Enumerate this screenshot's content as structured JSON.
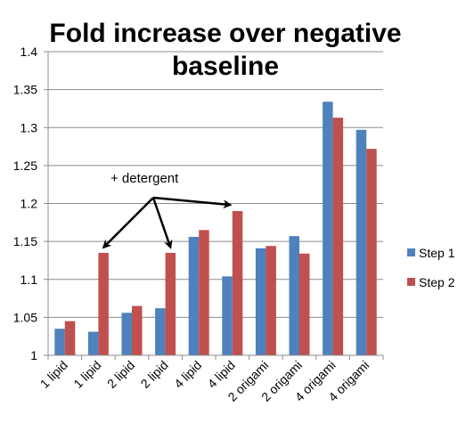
{
  "chart_data": {
    "type": "bar",
    "title": "Fold increase over negative baseline",
    "title_lines": [
      "Fold increase over negative",
      "baseline"
    ],
    "categories": [
      "1 lipid",
      "1 lipid",
      "2 lipid",
      "2 lipid",
      "4 lipid",
      "4 lipid",
      "2 origami",
      "2 origami",
      "4 origami",
      "4 origami"
    ],
    "series": [
      {
        "name": "Step 1",
        "color": "#4f81bd",
        "values": [
          1.035,
          1.031,
          1.056,
          1.062,
          1.156,
          1.104,
          1.141,
          1.157,
          1.334,
          1.297
        ]
      },
      {
        "name": "Step 2",
        "color": "#c0504d",
        "values": [
          1.045,
          1.135,
          1.065,
          1.135,
          1.165,
          1.19,
          1.144,
          1.134,
          1.313,
          1.272
        ]
      }
    ],
    "ylim": [
      1,
      1.4
    ],
    "yticks": [
      "1",
      "1.05",
      "1.1",
      "1.15",
      "1.2",
      "1.25",
      "1.3",
      "1.35",
      "1.4"
    ],
    "ytick_values": [
      1,
      1.05,
      1.1,
      1.15,
      1.2,
      1.25,
      1.3,
      1.35,
      1.4
    ],
    "xlabel": "",
    "ylabel": "",
    "grid": true,
    "legend_position": "right",
    "annotation": {
      "text": "+ detergent",
      "arrow_targets": [
        {
          "category_index": 1,
          "series": "Step 2"
        },
        {
          "category_index": 3,
          "series": "Step 2"
        },
        {
          "category_index": 5,
          "series": "Step 2"
        }
      ]
    }
  }
}
